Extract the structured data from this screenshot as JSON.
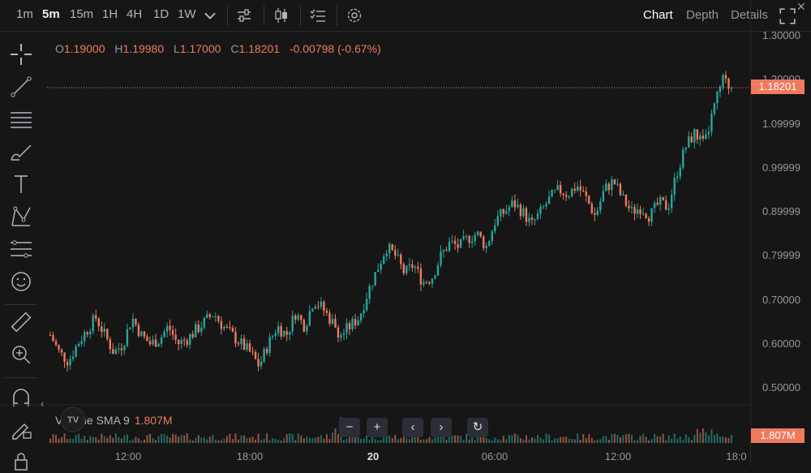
{
  "toolbar": {
    "timeframes": [
      {
        "label": "1m"
      },
      {
        "label": "5m"
      },
      {
        "label": "15m"
      },
      {
        "label": "1H"
      },
      {
        "label": "4H"
      },
      {
        "label": "1D"
      },
      {
        "label": "1W"
      }
    ],
    "active_timeframe": "5m",
    "icons": [
      "chevron-down-icon",
      "indicators-icon",
      "candle-type-icon",
      "checklist-icon",
      "gear-icon"
    ]
  },
  "view_tabs": {
    "chart": "Chart",
    "depth": "Depth",
    "details": "Details",
    "active": "Chart"
  },
  "ohlc": {
    "o_key": "O",
    "o": "1.19000",
    "h_key": "H",
    "h": "1.19980",
    "l_key": "L",
    "l": "1.17000",
    "c_key": "C",
    "c": "1.18201",
    "change": "-0.00798 (-0.67%)"
  },
  "left_tools": [
    "crosshair-icon",
    "trend-line-icon",
    "horizontal-lines-icon",
    "brush-icon",
    "text-icon",
    "pattern-icon",
    "forecast-icon",
    "emoji-icon",
    "ruler-icon",
    "zoom-in-icon",
    "magnet-icon",
    "lock-draw-icon",
    "lock-icon"
  ],
  "price_axis": [
    "1.30000",
    "1.20000",
    "1.09999",
    "0.99999",
    "0.89999",
    "0.79999",
    "0.70000",
    "0.60000",
    "0.50000"
  ],
  "time_axis": [
    {
      "label": "12:00",
      "bold": false
    },
    {
      "label": "18:00",
      "bold": false
    },
    {
      "label": "20",
      "bold": true
    },
    {
      "label": "06:00",
      "bold": false
    },
    {
      "label": "12:00",
      "bold": false
    },
    {
      "label": "18:0",
      "bold": false
    }
  ],
  "last_price": "1.18201",
  "volume": {
    "label": "Volume SMA 9",
    "value": "1.807M",
    "tag": "1.807M"
  },
  "nav_buttons": [
    "−",
    "+",
    "‹",
    "›",
    "↻"
  ],
  "colors": {
    "up": "#26a69a",
    "down": "#ef7a5e",
    "bg": "#161616",
    "accent": "#ef7a5e"
  },
  "chart_data": {
    "type": "candlestick",
    "ylim": [
      0.5,
      1.3
    ],
    "y_ticks": [
      0.5,
      0.6,
      0.7,
      0.8,
      0.9,
      1.0,
      1.1,
      1.2,
      1.3
    ],
    "x_ticks": [
      "12:00",
      "18:00",
      "20",
      "06:00",
      "12:00",
      "18:0"
    ],
    "close_path": [
      0.62,
      0.58,
      0.56,
      0.6,
      0.63,
      0.66,
      0.62,
      0.58,
      0.6,
      0.66,
      0.62,
      0.6,
      0.61,
      0.64,
      0.6,
      0.61,
      0.63,
      0.65,
      0.67,
      0.64,
      0.62,
      0.6,
      0.58,
      0.55,
      0.6,
      0.64,
      0.62,
      0.67,
      0.64,
      0.7,
      0.68,
      0.65,
      0.62,
      0.64,
      0.66,
      0.72,
      0.77,
      0.82,
      0.8,
      0.76,
      0.78,
      0.74,
      0.75,
      0.8,
      0.83,
      0.82,
      0.84,
      0.85,
      0.82,
      0.88,
      0.9,
      0.92,
      0.9,
      0.87,
      0.9,
      0.93,
      0.95,
      0.94,
      0.96,
      0.93,
      0.89,
      0.95,
      0.97,
      0.93,
      0.9,
      0.91,
      0.89,
      0.92,
      0.91,
      0.99,
      1.05,
      1.08,
      1.05,
      1.13,
      1.2,
      1.18
    ],
    "last_price": 1.18201
  }
}
